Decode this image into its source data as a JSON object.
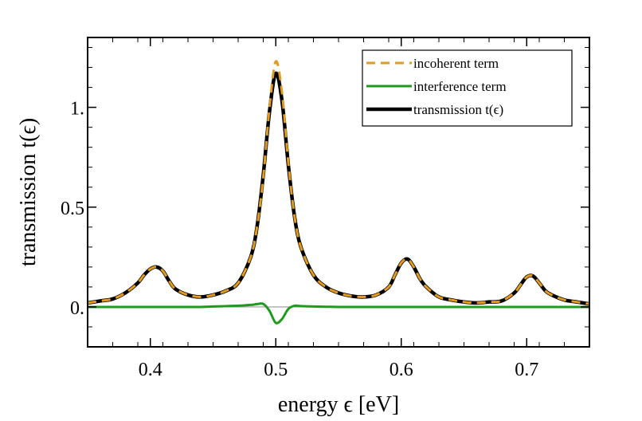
{
  "chart_data": {
    "type": "line",
    "title": "",
    "xlabel": "energy ϵ [eV]",
    "ylabel": "transmission t(ϵ)",
    "xlim": [
      0.35,
      0.75
    ],
    "ylim": [
      -0.2,
      1.35
    ],
    "xticks": [
      0.4,
      0.5,
      0.6,
      0.7
    ],
    "xtick_labels": [
      "0.4",
      "0.5",
      "0.6",
      "0.7"
    ],
    "yticks": [
      0.0,
      0.5,
      1.0
    ],
    "ytick_labels": [
      "0.",
      "0.5",
      "1."
    ],
    "grid": false,
    "legend_position": "top-right",
    "zero_line": true,
    "x": [
      0.35,
      0.36,
      0.37,
      0.38,
      0.39,
      0.395,
      0.4,
      0.405,
      0.41,
      0.415,
      0.42,
      0.43,
      0.44,
      0.45,
      0.46,
      0.47,
      0.48,
      0.485,
      0.49,
      0.495,
      0.5,
      0.505,
      0.51,
      0.515,
      0.52,
      0.53,
      0.54,
      0.55,
      0.56,
      0.57,
      0.58,
      0.59,
      0.595,
      0.6,
      0.605,
      0.61,
      0.615,
      0.62,
      0.63,
      0.64,
      0.65,
      0.66,
      0.67,
      0.68,
      0.69,
      0.695,
      0.7,
      0.705,
      0.71,
      0.715,
      0.72,
      0.73,
      0.74,
      0.75
    ],
    "series": [
      {
        "name": "incoherent term",
        "color": "#E29B1E",
        "dash": "dashed",
        "values": [
          0.02,
          0.03,
          0.04,
          0.07,
          0.12,
          0.16,
          0.19,
          0.2,
          0.18,
          0.13,
          0.09,
          0.06,
          0.05,
          0.06,
          0.08,
          0.12,
          0.25,
          0.4,
          0.65,
          1.0,
          1.23,
          1.07,
          0.72,
          0.45,
          0.3,
          0.16,
          0.1,
          0.07,
          0.055,
          0.05,
          0.06,
          0.1,
          0.16,
          0.22,
          0.24,
          0.2,
          0.14,
          0.1,
          0.05,
          0.035,
          0.025,
          0.02,
          0.025,
          0.03,
          0.07,
          0.11,
          0.15,
          0.155,
          0.12,
          0.08,
          0.06,
          0.035,
          0.025,
          0.015
        ]
      },
      {
        "name": "interference term",
        "color": "#1F9A1F",
        "dash": "solid",
        "values": [
          0.0,
          0.0,
          0.0,
          0.0,
          0.0,
          0.0,
          0.0,
          0.0,
          0.0,
          0.0,
          0.0,
          0.0,
          0.0,
          0.002,
          0.004,
          0.006,
          0.01,
          0.014,
          0.015,
          -0.02,
          -0.08,
          -0.06,
          -0.01,
          0.006,
          0.004,
          0.002,
          0.001,
          0.0,
          0.0,
          0.0,
          0.0,
          0.0,
          0.0,
          0.0,
          0.0,
          0.0,
          0.0,
          0.0,
          0.0,
          0.0,
          0.0,
          0.0,
          0.0,
          0.0,
          0.0,
          0.0,
          0.0,
          0.0,
          0.0,
          0.0,
          0.0,
          0.0,
          0.0,
          0.0
        ]
      },
      {
        "name": "transmission t(ϵ)",
        "color": "#000000",
        "dash": "solid",
        "values": [
          0.02,
          0.03,
          0.04,
          0.07,
          0.12,
          0.16,
          0.19,
          0.2,
          0.18,
          0.13,
          0.09,
          0.06,
          0.05,
          0.06,
          0.08,
          0.12,
          0.25,
          0.4,
          0.66,
          0.98,
          1.17,
          1.03,
          0.71,
          0.45,
          0.3,
          0.16,
          0.1,
          0.07,
          0.055,
          0.05,
          0.06,
          0.1,
          0.16,
          0.22,
          0.24,
          0.2,
          0.14,
          0.1,
          0.05,
          0.035,
          0.025,
          0.02,
          0.025,
          0.03,
          0.07,
          0.11,
          0.15,
          0.155,
          0.12,
          0.08,
          0.06,
          0.035,
          0.025,
          0.015
        ]
      }
    ]
  }
}
